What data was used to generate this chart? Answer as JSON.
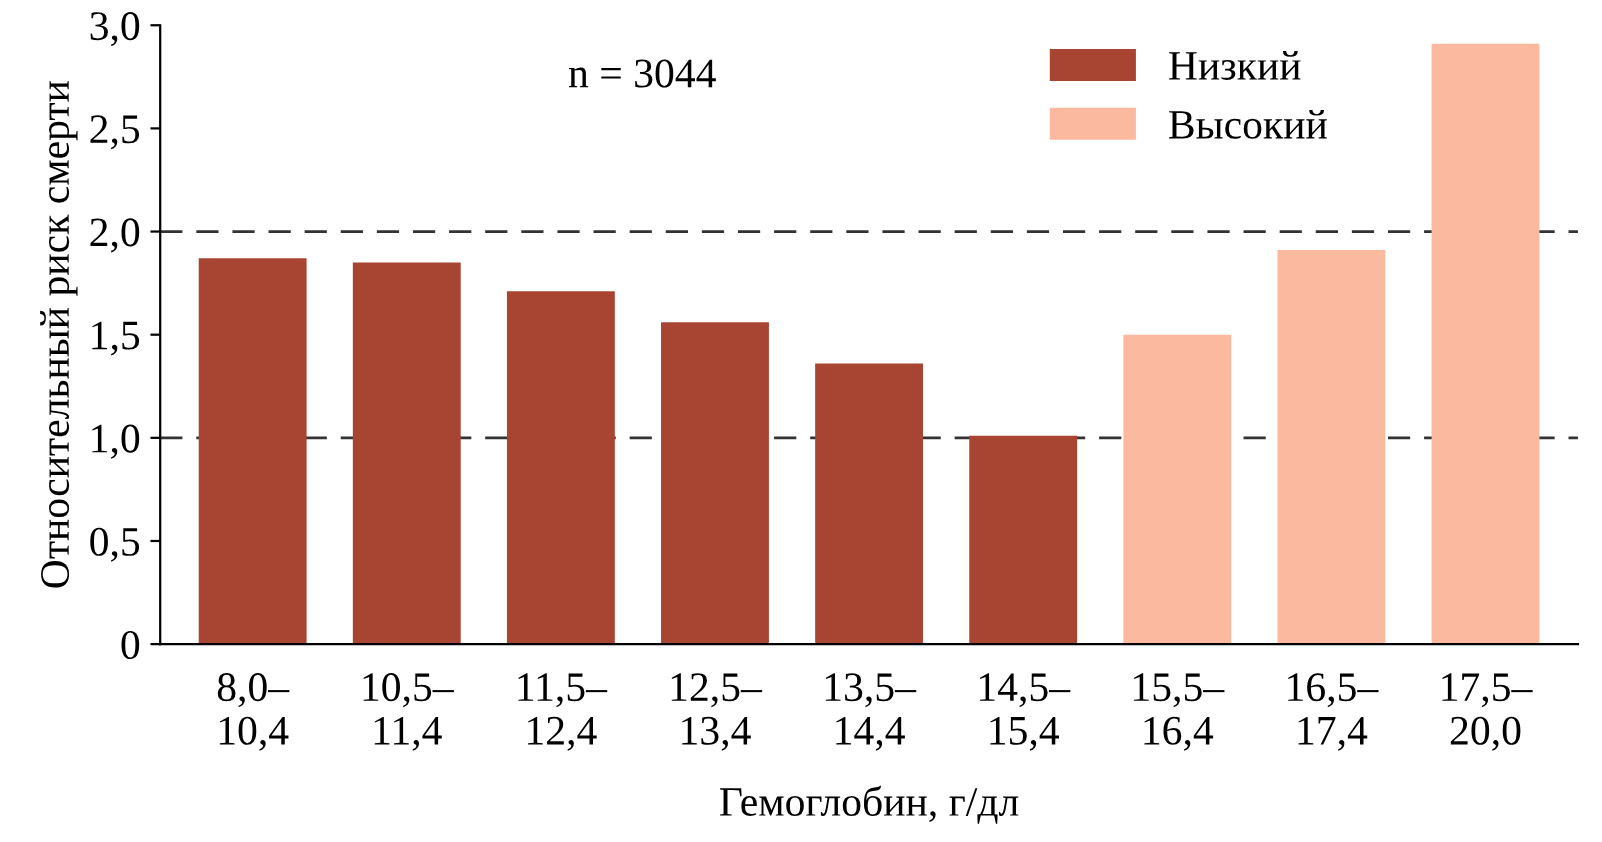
{
  "chart_data": {
    "type": "bar",
    "xlabel": "Гемоглобин, г/дл",
    "ylabel": "Относительный риск смерти",
    "categories": [
      "8,0–\n10,4",
      "10,5–\n11,4",
      "11,5–\n12,4",
      "12,5–\n13,4",
      "13,5–\n14,4",
      "14,5–\n15,4",
      "15,5–\n16,4",
      "16,5–\n17,4",
      "17,5–\n20,0"
    ],
    "series": [
      {
        "name": "Низкий",
        "color": "#a84432",
        "values": [
          1.87,
          1.85,
          1.71,
          1.56,
          1.36,
          1.01,
          null,
          null,
          null
        ]
      },
      {
        "name": "Высокий",
        "color": "#fbb9a0",
        "values": [
          null,
          null,
          null,
          null,
          null,
          null,
          1.5,
          1.91,
          2.91
        ]
      }
    ],
    "ylim": [
      0,
      3
    ],
    "yticks": [
      0,
      {
        "value": 0.5,
        "label": "0,5"
      },
      {
        "value": 1,
        "label": "1,0"
      },
      {
        "value": 1.5,
        "label": "1,5"
      },
      {
        "value": 2,
        "label": "2,0"
      },
      {
        "value": 2.5,
        "label": "2,5"
      },
      {
        "value": 3,
        "label": "3,0"
      }
    ],
    "ref_lines": [
      {
        "axis": "y",
        "value": 1,
        "color": "#333333",
        "line_style": "dashed"
      },
      {
        "axis": "y",
        "value": 2,
        "color": "#333333",
        "line_style": "dashed"
      }
    ],
    "annotations": [
      "n = 3044"
    ],
    "legend": "top right",
    "grid": false
  }
}
